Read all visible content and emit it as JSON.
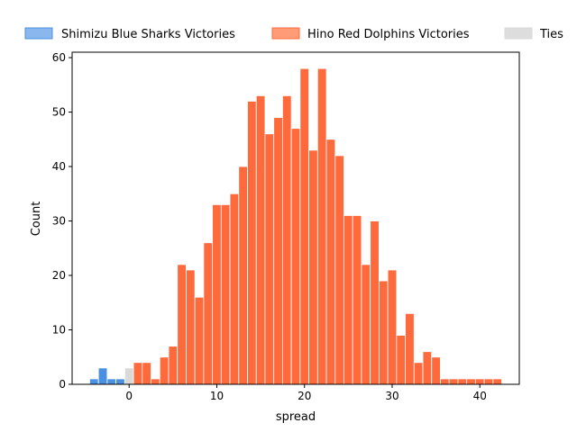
{
  "chart_data": {
    "type": "bar",
    "xlabel": "spread",
    "ylabel": "Count",
    "xlim": [
      -6.5,
      44.5
    ],
    "ylim": [
      0,
      61
    ],
    "x_ticks": [
      0,
      10,
      20,
      30,
      40
    ],
    "y_ticks": [
      0,
      10,
      20,
      30,
      40,
      50,
      60
    ],
    "bin_width": 1,
    "legend_position": "top",
    "series": [
      {
        "name": "Shimizu Blue Sharks Victories",
        "color": "#4a90e2",
        "legend_color": "#8ab8ee",
        "x": [
          -4,
          -3,
          -2,
          -1
        ],
        "values": [
          1,
          3,
          1,
          1
        ]
      },
      {
        "name": "Hino Red Dolphins Victories",
        "color": "#ff6a3d",
        "legend_color": "#ff9c78",
        "x": [
          1,
          2,
          3,
          4,
          5,
          6,
          7,
          8,
          9,
          10,
          11,
          12,
          13,
          14,
          15,
          16,
          17,
          18,
          19,
          20,
          21,
          22,
          23,
          24,
          25,
          26,
          27,
          28,
          29,
          30,
          31,
          32,
          33,
          34,
          35,
          36,
          37,
          38,
          39,
          40,
          41,
          42
        ],
        "values": [
          4,
          4,
          1,
          5,
          7,
          22,
          21,
          16,
          26,
          33,
          33,
          35,
          40,
          52,
          53,
          46,
          49,
          53,
          47,
          58,
          43,
          58,
          45,
          42,
          31,
          31,
          22,
          30,
          19,
          21,
          9,
          13,
          4,
          6,
          5,
          1,
          1,
          1,
          1,
          1,
          1,
          1
        ]
      },
      {
        "name": "Ties",
        "color": "#d9d9d9",
        "legend_color": "#dddddd",
        "x": [
          0
        ],
        "values": [
          3
        ]
      }
    ]
  }
}
